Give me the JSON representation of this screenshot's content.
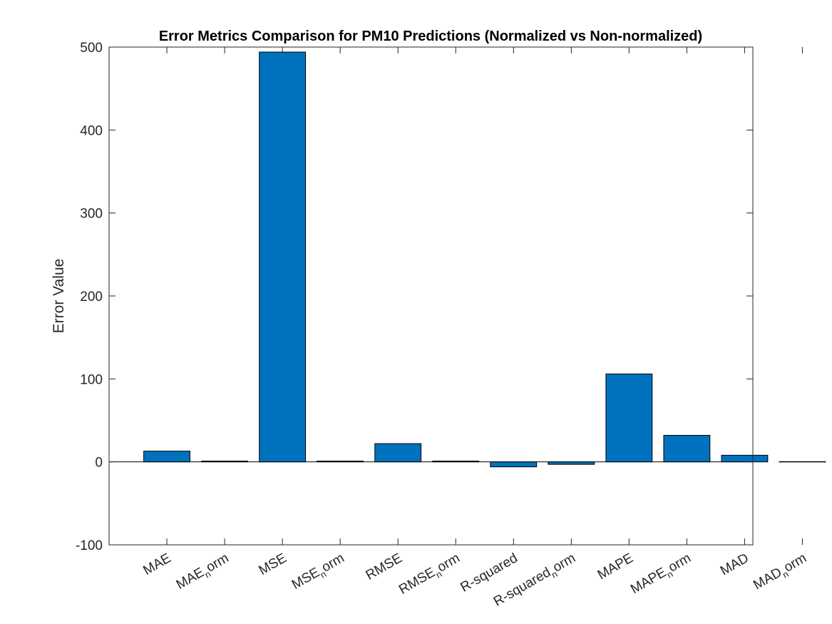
{
  "chart_data": {
    "type": "bar",
    "title": "Error Metrics Comparison for PM10 Predictions (Normalized vs Non-normalized)",
    "ylabel": "Error Value",
    "xlabel": "",
    "ylim": [
      -100,
      500
    ],
    "yticks": [
      -100,
      0,
      100,
      200,
      300,
      400,
      500
    ],
    "categories": [
      {
        "main": "MAE",
        "sub": "",
        "tail": ""
      },
      {
        "main": "MAE",
        "sub": "n",
        "tail": "orm"
      },
      {
        "main": "MSE",
        "sub": "",
        "tail": ""
      },
      {
        "main": "MSE",
        "sub": "n",
        "tail": "orm"
      },
      {
        "main": "RMSE",
        "sub": "",
        "tail": ""
      },
      {
        "main": "RMSE",
        "sub": "n",
        "tail": "orm"
      },
      {
        "main": "R-squared",
        "sub": "",
        "tail": ""
      },
      {
        "main": "R-squared",
        "sub": "n",
        "tail": "orm"
      },
      {
        "main": "MAPE",
        "sub": "",
        "tail": ""
      },
      {
        "main": "MAPE",
        "sub": "n",
        "tail": "orm"
      },
      {
        "main": "MAD",
        "sub": "",
        "tail": ""
      },
      {
        "main": "MAD",
        "sub": "n",
        "tail": "orm"
      }
    ],
    "values": [
      13,
      1,
      494,
      1,
      22,
      1,
      -6,
      -3,
      106,
      32,
      8,
      0.3
    ],
    "bar_color": "#0072BD",
    "grid": false,
    "legend": "none"
  }
}
